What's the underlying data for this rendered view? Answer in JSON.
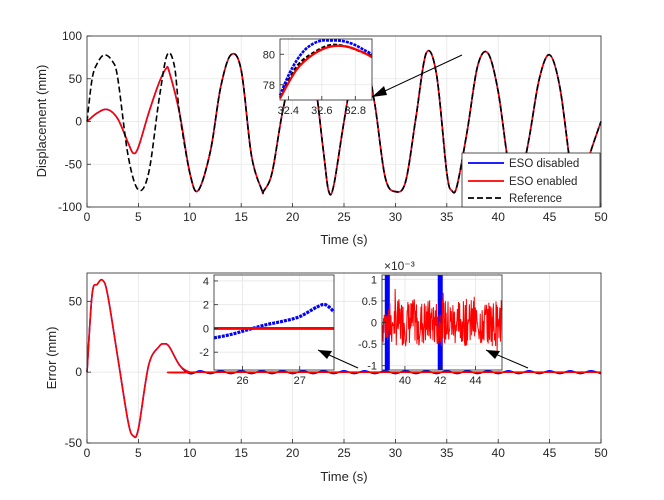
{
  "chart_data": [
    {
      "type": "line",
      "xlabel": "Time (s)",
      "ylabel": "Displacement (mm)",
      "xlim": [
        0,
        50
      ],
      "ylim": [
        -100,
        100
      ],
      "xticks": [
        "0",
        "5",
        "10",
        "15",
        "20",
        "25",
        "30",
        "35",
        "40",
        "45",
        "50"
      ],
      "yticks": [
        "-100",
        "-50",
        "0",
        "50",
        "100"
      ],
      "grid": true,
      "legend_position": "bottom-right",
      "series": [
        {
          "name": "ESO disabled",
          "color": "#0000ff",
          "dash": "solid",
          "x": [
            0,
            1,
            2,
            3,
            4,
            4.5,
            5,
            6,
            7,
            7.7,
            8,
            9,
            10,
            10.8,
            12,
            13,
            14,
            15,
            16,
            17,
            17.2,
            18,
            19,
            20,
            21,
            22,
            23,
            23.5,
            24,
            25,
            26,
            27,
            28,
            29,
            30,
            31,
            32,
            33,
            34,
            35,
            35.5,
            36,
            37,
            38,
            39,
            40,
            41,
            41.8,
            42,
            43,
            44,
            45,
            46,
            47,
            47.5,
            48,
            49,
            50
          ],
          "y": [
            0,
            10,
            14,
            3,
            -25,
            -37,
            -30,
            10,
            45,
            62,
            58,
            10,
            -60,
            -81,
            -35,
            40,
            78,
            60,
            -40,
            -80,
            -81,
            -60,
            10,
            60,
            78,
            60,
            -35,
            -81,
            -75,
            0,
            65,
            78,
            20,
            -65,
            -82,
            -70,
            5,
            80,
            55,
            -60,
            -81,
            -75,
            -10,
            65,
            80,
            35,
            -50,
            -81,
            -80,
            -20,
            50,
            78,
            40,
            -50,
            -81,
            -75,
            -35,
            0
          ]
        },
        {
          "name": "ESO enabled",
          "color": "#ff0000",
          "dash": "solid",
          "x": [
            0,
            1,
            2,
            3,
            4,
            4.5,
            5,
            6,
            7,
            7.7,
            8,
            9,
            10,
            10.8,
            12,
            13,
            14,
            15,
            16,
            17,
            17.2,
            18,
            19,
            20,
            21,
            22,
            23,
            23.5,
            24,
            25,
            26,
            27,
            28,
            29,
            30,
            31,
            32,
            33,
            34,
            35,
            35.5,
            36,
            37,
            38,
            39,
            40,
            41,
            41.8,
            42,
            43,
            44,
            45,
            46,
            47,
            47.5,
            48,
            49,
            50
          ],
          "y": [
            0,
            10,
            14,
            3,
            -25,
            -37,
            -30,
            10,
            45,
            62,
            58,
            10,
            -60,
            -81,
            -35,
            40,
            78,
            60,
            -40,
            -80,
            -81,
            -60,
            10,
            60,
            78,
            60,
            -35,
            -81,
            -75,
            0,
            65,
            78,
            20,
            -65,
            -82,
            -70,
            5,
            80,
            55,
            -60,
            -81,
            -75,
            -10,
            65,
            80,
            35,
            -50,
            -81,
            -80,
            -20,
            50,
            78,
            40,
            -50,
            -81,
            -75,
            -35,
            0
          ]
        },
        {
          "name": "Reference",
          "color": "#000000",
          "dash": "dashed",
          "x": [
            0,
            0.5,
            1,
            1.7,
            2.5,
            3,
            4,
            5,
            6,
            7,
            7.8,
            8.5,
            9,
            10,
            10.8,
            12,
            13,
            14,
            15,
            16,
            17,
            17.2,
            18,
            19,
            20,
            21,
            22,
            23,
            23.5,
            24,
            25,
            26,
            27,
            28,
            29,
            30,
            31,
            32,
            33,
            34,
            35,
            35.5,
            36,
            37,
            38,
            39,
            40,
            41,
            41.8,
            42,
            43,
            44,
            45,
            46,
            47,
            47.5,
            48,
            49,
            50
          ],
          "y": [
            0,
            50,
            68,
            78,
            70,
            50,
            -40,
            -80,
            -60,
            25,
            78,
            65,
            10,
            -60,
            -81,
            -35,
            40,
            78,
            60,
            -40,
            -80,
            -81,
            -60,
            10,
            60,
            78,
            60,
            -35,
            -81,
            -75,
            0,
            65,
            78,
            20,
            -65,
            -82,
            -70,
            5,
            80,
            55,
            -60,
            -81,
            -75,
            -10,
            65,
            80,
            35,
            -50,
            -81,
            -80,
            -20,
            50,
            78,
            40,
            -50,
            -81,
            -75,
            -35,
            0
          ]
        }
      ],
      "inset": {
        "xlim": [
          32.35,
          32.9
        ],
        "ylim": [
          77,
          81
        ],
        "xticks": [
          "32.4",
          "32.6",
          "32.8"
        ],
        "yticks": [
          "78",
          "80"
        ],
        "series": [
          {
            "name": "Reference",
            "color": "#000000",
            "x": [
              32.35,
              32.45,
              32.55,
              32.65,
              32.75,
              32.85,
              32.9
            ],
            "y": [
              77.2,
              79.2,
              80.1,
              80.6,
              80.5,
              80.1,
              79.9
            ]
          },
          {
            "name": "ESO disabled",
            "color": "#0000ff",
            "x": [
              32.35,
              32.4,
              32.45,
              32.5,
              32.55,
              32.6,
              32.65,
              32.7,
              32.75,
              32.8,
              32.85,
              32.9
            ],
            "y": [
              77.3,
              78.6,
              79.6,
              80.3,
              80.7,
              80.9,
              80.9,
              80.9,
              80.8,
              80.6,
              80.3,
              80.0
            ]
          },
          {
            "name": "ESO enabled",
            "color": "#ff0000",
            "x": [
              32.35,
              32.45,
              32.55,
              32.65,
              32.75,
              32.85,
              32.9
            ],
            "y": [
              77.1,
              79.0,
              80.0,
              80.5,
              80.5,
              80.1,
              79.8
            ]
          }
        ]
      }
    },
    {
      "type": "line",
      "xlabel": "Time (s)",
      "ylabel": "Error (mm)",
      "xlim": [
        0,
        50
      ],
      "ylim": [
        -50,
        70
      ],
      "xticks": [
        "0",
        "5",
        "10",
        "15",
        "20",
        "25",
        "30",
        "35",
        "40",
        "45",
        "50"
      ],
      "yticks": [
        "-50",
        "0",
        "50"
      ],
      "grid": true,
      "series": [
        {
          "name": "ESO disabled",
          "color": "#0000ff",
          "x": [
            0,
            0.5,
            1,
            1.5,
            2,
            3,
            4,
            4.5,
            5,
            6,
            7,
            7.5,
            8,
            9,
            10,
            11,
            12,
            13,
            14,
            15,
            16,
            17,
            18,
            19,
            20,
            21,
            22,
            23,
            24,
            25,
            26,
            27,
            28,
            29,
            30,
            31,
            32,
            33,
            34,
            35,
            36,
            37,
            38,
            39,
            40,
            41,
            42,
            43,
            44,
            45,
            46,
            47,
            48,
            49,
            50
          ],
          "y": [
            0,
            55,
            62,
            65,
            55,
            10,
            -35,
            -45,
            -40,
            5,
            18,
            20,
            18,
            5,
            -1,
            1,
            -1,
            1,
            -1,
            1,
            -1,
            1,
            -1,
            1,
            -1,
            1,
            -1,
            1,
            -1,
            1,
            -1,
            1,
            -1,
            1,
            -1,
            1,
            -1,
            1,
            -1,
            1,
            -1,
            1,
            -1,
            1,
            -1,
            1,
            -1,
            1,
            -1,
            1,
            -1,
            1,
            -1,
            1,
            -1
          ]
        },
        {
          "name": "ESO enabled",
          "color": "#ff0000",
          "x": [
            0,
            0.5,
            1,
            1.5,
            2,
            3,
            4,
            4.5,
            5,
            6,
            7,
            7.5,
            8,
            9,
            10,
            11,
            50
          ],
          "y": [
            0,
            55,
            62,
            65,
            55,
            10,
            -35,
            -45,
            -40,
            5,
            18,
            20,
            18,
            5,
            0,
            0,
            0
          ]
        }
      ],
      "insets": [
        {
          "xlim": [
            25.5,
            27.6
          ],
          "ylim": [
            -3.5,
            4.5
          ],
          "xticks": [
            "26",
            "27"
          ],
          "yticks": [
            "-2",
            "0",
            "2",
            "4"
          ],
          "series": [
            {
              "name": "ESO disabled",
              "color": "#0000ff",
              "x": [
                25.5,
                25.8,
                26.1,
                26.4,
                26.7,
                27.0,
                27.3,
                27.45,
                27.6
              ],
              "y": [
                -0.8,
                -0.5,
                -0.1,
                0.3,
                0.6,
                1.0,
                1.8,
                2.0,
                1.4
              ]
            },
            {
              "name": "ESO enabled",
              "color": "#ff0000",
              "x": [
                25.5,
                27.6
              ],
              "y": [
                0,
                0
              ]
            }
          ]
        },
        {
          "xlim": [
            38.7,
            45.5
          ],
          "ylim": [
            -0.0011,
            0.0011
          ],
          "xticks": [
            "40",
            "42",
            "44"
          ],
          "yticks": [
            "-1",
            "-0.5",
            "0",
            "0.5",
            "1"
          ],
          "exponent_label": "×10⁻³",
          "series": [
            {
              "name": "ESO disabled",
              "color": "#0000ff",
              "x": [
                39.0,
                42.0
              ],
              "y": [
                0.001,
                0.001
              ]
            },
            {
              "name": "ESO enabled",
              "color": "#ff0000",
              "x": [
                38.7,
                45.5
              ],
              "y": [
                0,
                0
              ]
            }
          ]
        }
      ]
    }
  ]
}
